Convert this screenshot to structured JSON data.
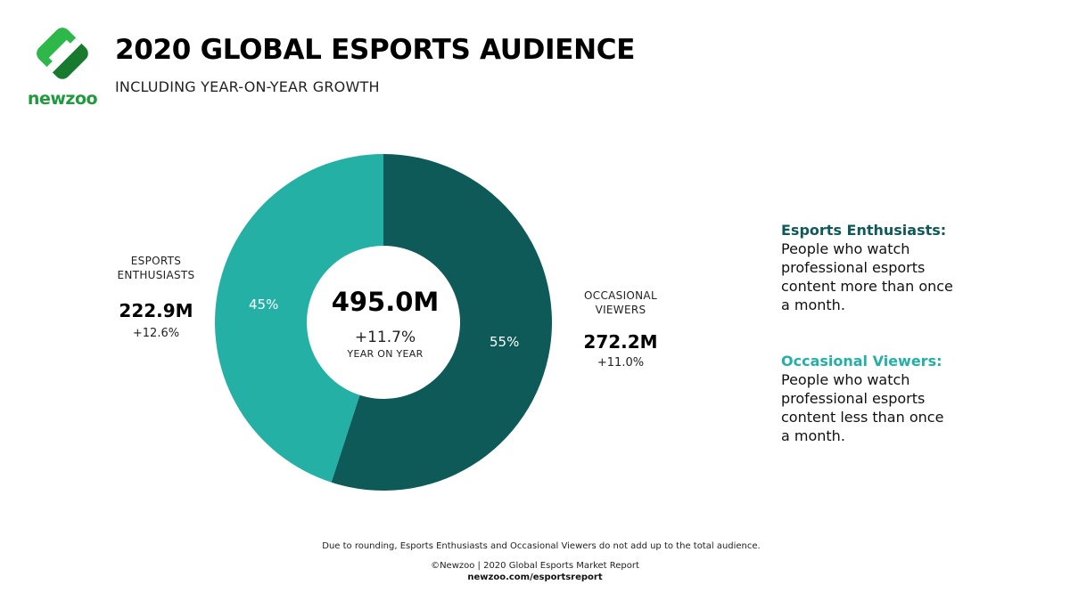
{
  "brand": {
    "logo_text": "newzoo",
    "logo_colors": {
      "light": "#2fb84a",
      "dark": "#177a2f",
      "stripe": "#ffffff"
    }
  },
  "header": {
    "title": "2020 GLOBAL ESPORTS AUDIENCE",
    "subtitle": "INCLUDING YEAR-ON-YEAR GROWTH"
  },
  "chart_data": {
    "type": "pie",
    "donut": true,
    "slices": [
      {
        "name": "OCCASIONAL VIEWERS",
        "value": 55,
        "label": "55%",
        "color": "#0e5a59"
      },
      {
        "name": "ESPORTS ENTHUSIASTS",
        "value": 45,
        "label": "45%",
        "color": "#24b0a5"
      }
    ],
    "center": {
      "total": "495.0M",
      "growth": "+11.7%",
      "growth_label": "YEAR ON YEAR"
    }
  },
  "segments": {
    "enthusiasts": {
      "name_line1": "ESPORTS",
      "name_line2": "ENTHUSIASTS",
      "value": "222.9M",
      "growth": "+12.6%"
    },
    "occasional": {
      "name_line1": "OCCASIONAL",
      "name_line2": "VIEWERS",
      "value": "272.2M",
      "growth": "+11.0%"
    }
  },
  "definitions": {
    "enthusiasts": {
      "title": "Esports Enthusiasts:",
      "lines": [
        "People who watch",
        "professional esports",
        "content more than once",
        "a month."
      ]
    },
    "occasional": {
      "title": "Occasional Viewers:",
      "lines": [
        "People who watch",
        "professional esports",
        "content less than once",
        "a month."
      ]
    }
  },
  "footer": {
    "note": "Due to rounding, Esports Enthusiasts and Occasional Viewers do not add up to the total audience.",
    "source": "©Newzoo | 2020 Global Esports Market Report",
    "url": "newzoo.com/esportsreport"
  }
}
